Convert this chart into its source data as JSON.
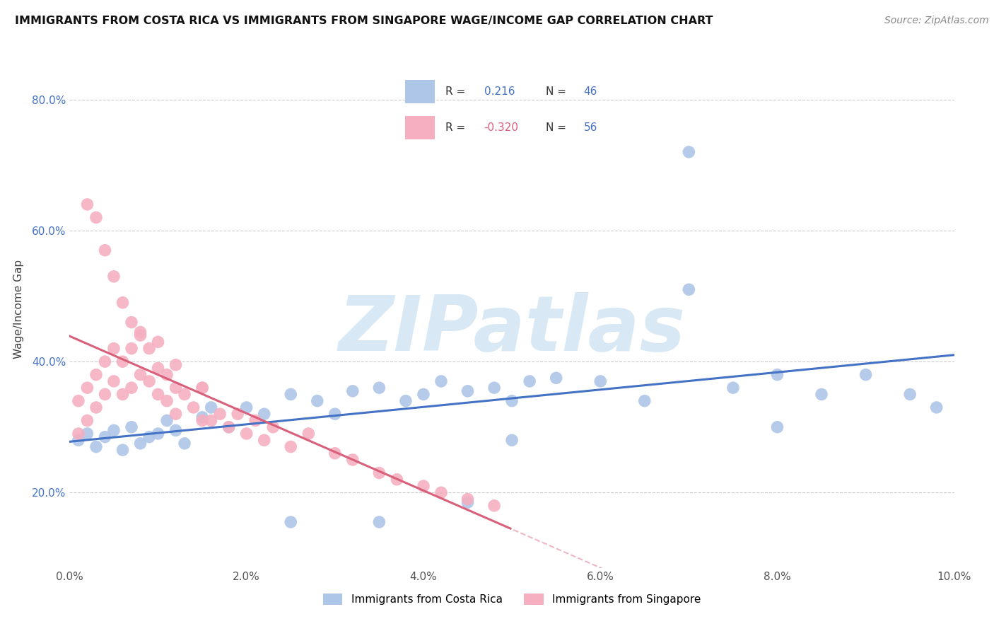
{
  "title": "IMMIGRANTS FROM COSTA RICA VS IMMIGRANTS FROM SINGAPORE WAGE/INCOME GAP CORRELATION CHART",
  "source": "Source: ZipAtlas.com",
  "ylabel": "Wage/Income Gap",
  "xlim": [
    0.0,
    0.1
  ],
  "ylim": [
    0.085,
    0.875
  ],
  "xticks": [
    0.0,
    0.02,
    0.04,
    0.06,
    0.08,
    0.1
  ],
  "xtick_labels": [
    "0.0%",
    "2.0%",
    "4.0%",
    "6.0%",
    "8.0%",
    "10.0%"
  ],
  "yticks": [
    0.2,
    0.4,
    0.6,
    0.8
  ],
  "ytick_labels": [
    "20.0%",
    "40.0%",
    "60.0%",
    "80.0%"
  ],
  "legend1_label": "Immigrants from Costa Rica",
  "legend2_label": "Immigrants from Singapore",
  "R1": 0.216,
  "N1": 46,
  "R2": -0.32,
  "N2": 56,
  "color_cr": "#aec6e8",
  "color_sg": "#f5afc0",
  "line_color_cr": "#4472c4",
  "line_color_sg": "#d9607a",
  "watermark_color": "#d8e8f5",
  "background_color": "#ffffff",
  "cr_x": [
    0.001,
    0.002,
    0.003,
    0.004,
    0.005,
    0.006,
    0.007,
    0.008,
    0.009,
    0.01,
    0.011,
    0.012,
    0.013,
    0.015,
    0.016,
    0.018,
    0.02,
    0.022,
    0.025,
    0.028,
    0.03,
    0.032,
    0.035,
    0.038,
    0.04,
    0.042,
    0.045,
    0.048,
    0.05,
    0.052,
    0.055,
    0.06,
    0.065,
    0.07,
    0.075,
    0.08,
    0.085,
    0.09,
    0.095,
    0.098,
    0.05,
    0.08,
    0.035,
    0.025,
    0.045,
    0.07
  ],
  "cr_y": [
    0.28,
    0.29,
    0.27,
    0.285,
    0.295,
    0.265,
    0.3,
    0.275,
    0.285,
    0.29,
    0.31,
    0.295,
    0.275,
    0.315,
    0.33,
    0.3,
    0.33,
    0.32,
    0.35,
    0.34,
    0.32,
    0.355,
    0.36,
    0.34,
    0.35,
    0.37,
    0.355,
    0.36,
    0.34,
    0.37,
    0.375,
    0.37,
    0.34,
    0.72,
    0.36,
    0.38,
    0.35,
    0.38,
    0.35,
    0.33,
    0.28,
    0.3,
    0.155,
    0.155,
    0.185,
    0.51
  ],
  "sg_x": [
    0.001,
    0.001,
    0.002,
    0.002,
    0.003,
    0.003,
    0.004,
    0.004,
    0.005,
    0.005,
    0.006,
    0.006,
    0.007,
    0.007,
    0.008,
    0.008,
    0.009,
    0.009,
    0.01,
    0.01,
    0.011,
    0.011,
    0.012,
    0.012,
    0.013,
    0.014,
    0.015,
    0.015,
    0.016,
    0.017,
    0.018,
    0.019,
    0.02,
    0.021,
    0.022,
    0.023,
    0.025,
    0.027,
    0.03,
    0.032,
    0.035,
    0.037,
    0.04,
    0.042,
    0.045,
    0.048,
    0.002,
    0.003,
    0.004,
    0.005,
    0.006,
    0.007,
    0.008,
    0.01,
    0.012,
    0.015
  ],
  "sg_y": [
    0.29,
    0.34,
    0.31,
    0.36,
    0.33,
    0.38,
    0.35,
    0.4,
    0.37,
    0.42,
    0.35,
    0.4,
    0.36,
    0.42,
    0.38,
    0.44,
    0.37,
    0.42,
    0.39,
    0.35,
    0.38,
    0.34,
    0.36,
    0.32,
    0.35,
    0.33,
    0.31,
    0.36,
    0.31,
    0.32,
    0.3,
    0.32,
    0.29,
    0.31,
    0.28,
    0.3,
    0.27,
    0.29,
    0.26,
    0.25,
    0.23,
    0.22,
    0.21,
    0.2,
    0.19,
    0.18,
    0.64,
    0.62,
    0.57,
    0.53,
    0.49,
    0.46,
    0.445,
    0.43,
    0.395,
    0.36
  ]
}
